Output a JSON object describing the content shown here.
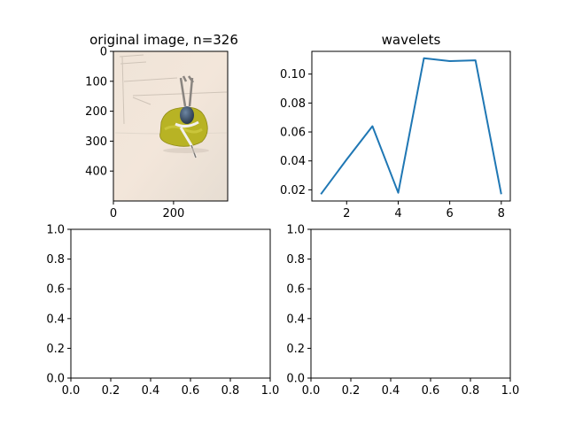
{
  "chart_data": [
    {
      "type": "image",
      "title": "original image, n=326",
      "xlim": [
        0,
        380
      ],
      "ylim": [
        500,
        0
      ],
      "xticks": [
        0,
        200
      ],
      "yticks": [
        0,
        100,
        200,
        300,
        400
      ],
      "xtick_labels": [
        "0",
        "200"
      ],
      "ytick_labels": [
        "0",
        "100",
        "200",
        "300",
        "400"
      ],
      "grid": false
    },
    {
      "type": "line",
      "title": "wavelets",
      "x": [
        1,
        2,
        3,
        4,
        5,
        6,
        7,
        8
      ],
      "series": [
        {
          "values": [
            0.017,
            0.041,
            0.064,
            0.018,
            0.111,
            0.109,
            0.1095,
            0.017
          ]
        }
      ],
      "xlim": [
        0.65,
        8.35
      ],
      "ylim": [
        0.0123,
        0.1157
      ],
      "xticks": [
        2,
        4,
        6,
        8
      ],
      "yticks": [
        0.02,
        0.04,
        0.06,
        0.08,
        0.1
      ],
      "xtick_labels": [
        "2",
        "4",
        "6",
        "8"
      ],
      "ytick_labels": [
        "0.02",
        "0.04",
        "0.06",
        "0.08",
        "0.10"
      ],
      "line_color": "#1f77b4",
      "grid": false
    },
    {
      "type": "empty",
      "xlim": [
        0,
        1
      ],
      "ylim": [
        0,
        1
      ],
      "xticks": [
        0.0,
        0.2,
        0.4,
        0.6,
        0.8,
        1.0
      ],
      "yticks": [
        0.0,
        0.2,
        0.4,
        0.6,
        0.8,
        1.0
      ],
      "xtick_labels": [
        "0.0",
        "0.2",
        "0.4",
        "0.6",
        "0.8",
        "1.0"
      ],
      "ytick_labels": [
        "0.0",
        "0.2",
        "0.4",
        "0.6",
        "0.8",
        "1.0"
      ],
      "grid": false
    },
    {
      "type": "empty",
      "xlim": [
        0,
        1
      ],
      "ylim": [
        0,
        1
      ],
      "xticks": [
        0.0,
        0.2,
        0.4,
        0.6,
        0.8,
        1.0
      ],
      "yticks": [
        0.0,
        0.2,
        0.4,
        0.6,
        0.8,
        1.0
      ],
      "xtick_labels": [
        "0.0",
        "0.2",
        "0.4",
        "0.6",
        "0.8",
        "1.0"
      ],
      "ytick_labels": [
        "0.0",
        "0.2",
        "0.4",
        "0.6",
        "0.8",
        "1.0"
      ],
      "grid": false
    }
  ]
}
